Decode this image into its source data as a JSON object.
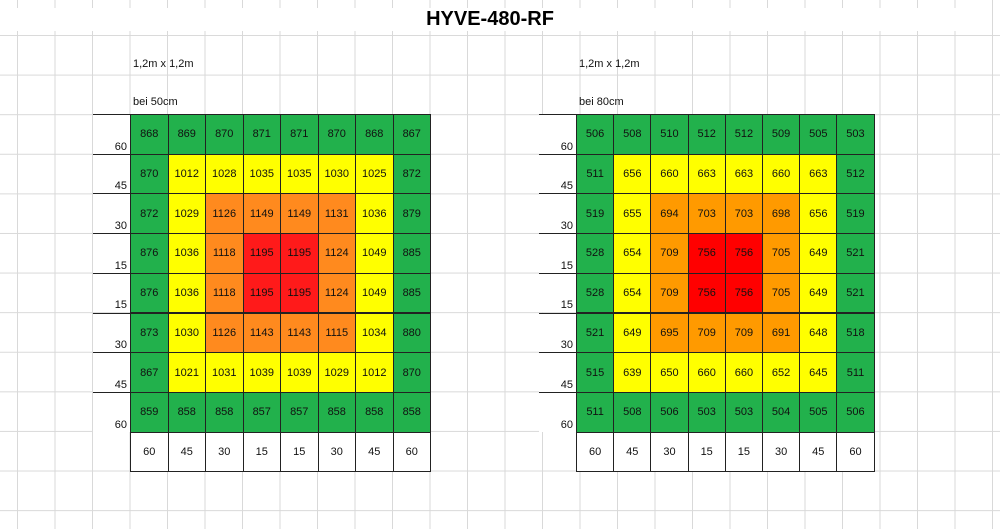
{
  "title": "HYVE-480-RF",
  "panels": [
    {
      "size_label": "1,2m x 1,2m",
      "height_label": "bei 50cm",
      "row_labels": [
        60,
        45,
        30,
        15,
        15,
        30,
        45,
        60
      ],
      "col_labels": [
        60,
        45,
        30,
        15,
        15,
        30,
        45,
        60
      ],
      "ring_colors": [
        "#22b14c",
        "#ffff00",
        "#ff8a1e",
        "#ff1a1a"
      ],
      "rows": [
        [
          868,
          869,
          870,
          871,
          871,
          870,
          868,
          867
        ],
        [
          870,
          1012,
          1028,
          1035,
          1035,
          1030,
          1025,
          872
        ],
        [
          872,
          1029,
          1126,
          1149,
          1149,
          1131,
          1036,
          879
        ],
        [
          876,
          1036,
          1118,
          1195,
          1195,
          1124,
          1049,
          885
        ],
        [
          876,
          1036,
          1118,
          1195,
          1195,
          1124,
          1049,
          885
        ],
        [
          873,
          1030,
          1126,
          1143,
          1143,
          1115,
          1034,
          880
        ],
        [
          867,
          1021,
          1031,
          1039,
          1039,
          1029,
          1012,
          870
        ],
        [
          859,
          858,
          858,
          857,
          857,
          858,
          858,
          858
        ]
      ]
    },
    {
      "size_label": "1,2m x 1,2m",
      "height_label": "bei 80cm",
      "row_labels": [
        60,
        45,
        30,
        15,
        15,
        30,
        45,
        60
      ],
      "col_labels": [
        60,
        45,
        30,
        15,
        15,
        30,
        45,
        60
      ],
      "ring_colors": [
        "#22b14c",
        "#ffff00",
        "#ff9a00",
        "#ff0000"
      ],
      "rows": [
        [
          506,
          508,
          510,
          512,
          512,
          509,
          505,
          503
        ],
        [
          511,
          656,
          660,
          663,
          663,
          660,
          663,
          512
        ],
        [
          519,
          655,
          694,
          703,
          703,
          698,
          656,
          519
        ],
        [
          528,
          654,
          709,
          756,
          756,
          705,
          649,
          521
        ],
        [
          528,
          654,
          709,
          756,
          756,
          705,
          649,
          521
        ],
        [
          521,
          649,
          695,
          709,
          709,
          691,
          648,
          518
        ],
        [
          515,
          639,
          650,
          660,
          660,
          652,
          645,
          511
        ],
        [
          511,
          508,
          506,
          503,
          503,
          504,
          505,
          506
        ]
      ]
    }
  ]
}
